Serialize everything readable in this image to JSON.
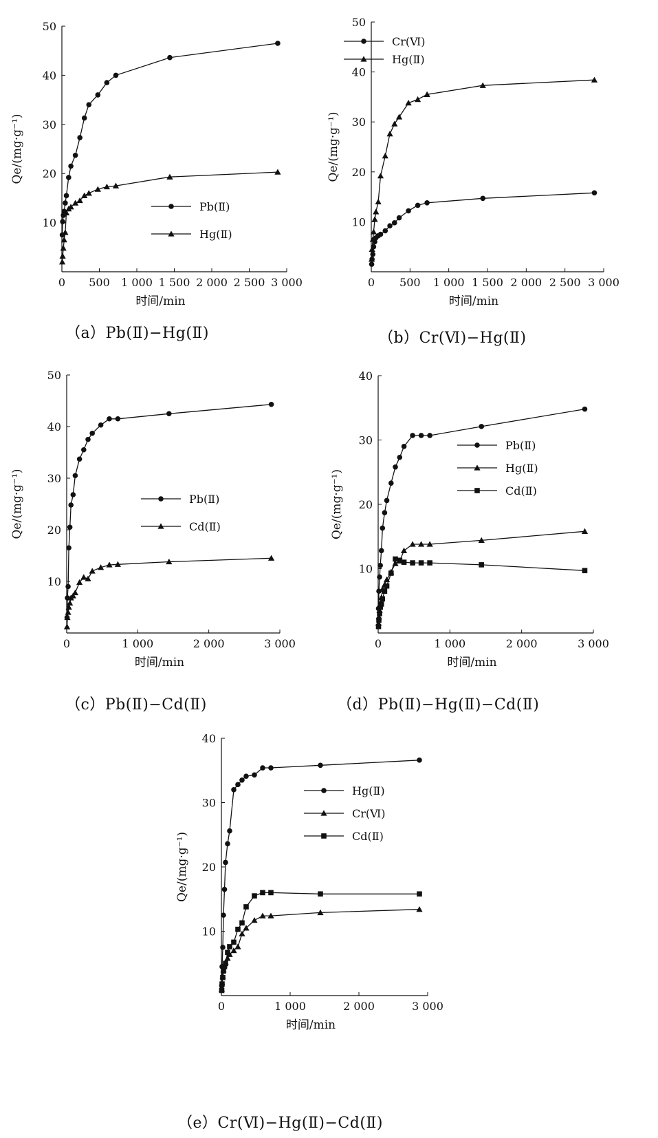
{
  "chart_data": [
    {
      "type": "line",
      "caption": "（a）Pb(Ⅱ)−Hg(Ⅱ)",
      "xlabel": "时间/min",
      "ylabel": "Qe/(mg·g⁻¹)",
      "xlim": [
        0,
        3000
      ],
      "ylim": [
        0,
        50
      ],
      "xticks": [
        0,
        500,
        1000,
        1500,
        2000,
        2500,
        3000
      ],
      "xtick_labels": [
        "0",
        "500",
        "1 000",
        "1 500",
        "2 000",
        "2 500",
        "3 000"
      ],
      "yticks": [
        10,
        20,
        30,
        40,
        50
      ],
      "ytick_labels": [
        "10",
        "20",
        "30",
        "40",
        "50"
      ],
      "legend_position": "right-middle",
      "grid": false,
      "series": [
        {
          "name": "Pb(Ⅱ)",
          "marker": "circle",
          "x": [
            5,
            10,
            20,
            30,
            45,
            60,
            90,
            120,
            180,
            240,
            300,
            360,
            480,
            600,
            720,
            1440,
            2880
          ],
          "y": [
            7.5,
            10.2,
            11.5,
            12.3,
            14.0,
            15.5,
            19.2,
            21.5,
            23.7,
            27.3,
            31.3,
            34.0,
            36.0,
            38.5,
            40.0,
            43.6,
            46.5
          ]
        },
        {
          "name": "Hg(Ⅱ)",
          "marker": "triangle",
          "x": [
            5,
            10,
            20,
            30,
            45,
            60,
            90,
            120,
            180,
            240,
            300,
            360,
            480,
            600,
            720,
            1440,
            2880
          ],
          "y": [
            2.0,
            3.2,
            4.8,
            6.5,
            8.0,
            12.0,
            12.8,
            13.2,
            14.0,
            14.5,
            15.5,
            16.0,
            16.8,
            17.3,
            17.5,
            19.3,
            20.3
          ]
        }
      ]
    },
    {
      "type": "line",
      "caption": "（b）Cr(Ⅵ)−Hg(Ⅱ)",
      "xlabel": "时间/min",
      "ylabel": "Qe/(mg·g⁻¹)",
      "xlim": [
        0,
        3000
      ],
      "ylim": [
        0,
        50
      ],
      "xticks": [
        0,
        500,
        1000,
        1500,
        2000,
        2500,
        3000
      ],
      "xtick_labels": [
        "0",
        "500",
        "1 000",
        "1 500",
        "2 000",
        "2 500",
        "3 000"
      ],
      "yticks": [
        10,
        20,
        30,
        40,
        50
      ],
      "ytick_labels": [
        "10",
        "20",
        "30",
        "40",
        "50"
      ],
      "legend_position": "top-left",
      "grid": false,
      "series": [
        {
          "name": "Cr(Ⅵ)",
          "marker": "circle",
          "x": [
            5,
            10,
            20,
            30,
            45,
            60,
            90,
            120,
            180,
            240,
            300,
            360,
            480,
            600,
            720,
            1440,
            2880
          ],
          "y": [
            1.5,
            2.5,
            3.5,
            5.0,
            6.0,
            6.8,
            7.2,
            7.5,
            8.2,
            9.2,
            9.8,
            10.8,
            12.2,
            13.3,
            13.8,
            14.7,
            15.8
          ]
        },
        {
          "name": "Hg(Ⅱ)",
          "marker": "triangle",
          "x": [
            5,
            10,
            20,
            30,
            45,
            60,
            90,
            120,
            180,
            240,
            300,
            360,
            480,
            600,
            720,
            1440,
            2880
          ],
          "y": [
            2.5,
            4.5,
            6.5,
            8.0,
            10.5,
            12.0,
            14.0,
            19.2,
            23.2,
            27.6,
            29.6,
            31.0,
            33.8,
            34.5,
            35.5,
            37.3,
            38.4
          ]
        }
      ]
    },
    {
      "type": "line",
      "caption": "（c）Pb(Ⅱ)−Cd(Ⅱ)",
      "xlabel": "时间/min",
      "ylabel": "Qe/(mg·g⁻¹)",
      "xlim": [
        0,
        3000
      ],
      "ylim": [
        0,
        50
      ],
      "xticks": [
        0,
        1000,
        2000,
        3000
      ],
      "xtick_labels": [
        "0",
        "1 000",
        "2 000",
        "3 000"
      ],
      "yticks": [
        10,
        20,
        30,
        40,
        50
      ],
      "ytick_labels": [
        "10",
        "20",
        "30",
        "40",
        "50"
      ],
      "legend_position": "right-middle",
      "grid": false,
      "series": [
        {
          "name": "Pb(Ⅱ)",
          "marker": "circle",
          "x": [
            5,
            10,
            20,
            30,
            45,
            60,
            90,
            120,
            180,
            240,
            300,
            360,
            480,
            600,
            720,
            1440,
            2880
          ],
          "y": [
            3.0,
            6.8,
            9.0,
            16.5,
            20.5,
            24.8,
            26.8,
            30.5,
            33.7,
            35.5,
            37.5,
            38.7,
            40.3,
            41.5,
            41.5,
            42.5,
            44.3
          ]
        },
        {
          "name": "Cd(Ⅱ)",
          "marker": "triangle",
          "x": [
            5,
            10,
            20,
            30,
            45,
            60,
            90,
            120,
            180,
            240,
            300,
            360,
            480,
            600,
            720,
            1440,
            2880
          ],
          "y": [
            1.2,
            3.0,
            4.0,
            5.0,
            5.8,
            6.8,
            7.2,
            7.8,
            9.8,
            10.8,
            10.5,
            12.0,
            12.7,
            13.2,
            13.3,
            13.8,
            14.5
          ]
        }
      ]
    },
    {
      "type": "line",
      "caption": "（d）Pb(Ⅱ)−Hg(Ⅱ)−Cd(Ⅱ)",
      "xlabel": "时间/min",
      "ylabel": "Qe/(mg·g⁻¹)",
      "xlim": [
        0,
        3000
      ],
      "ylim": [
        0,
        40
      ],
      "xticks": [
        0,
        1000,
        2000,
        3000
      ],
      "xtick_labels": [
        "0",
        "1 000",
        "2 000",
        "3 000"
      ],
      "yticks": [
        10,
        20,
        30,
        40
      ],
      "ytick_labels": [
        "10",
        "20",
        "30",
        "40"
      ],
      "legend_position": "right-middle",
      "grid": false,
      "series": [
        {
          "name": "Pb(Ⅱ)",
          "marker": "circle",
          "x": [
            5,
            10,
            20,
            30,
            45,
            60,
            90,
            120,
            180,
            240,
            300,
            360,
            480,
            600,
            720,
            1440,
            2880
          ],
          "y": [
            3.8,
            6.5,
            8.7,
            10.5,
            12.8,
            16.3,
            18.7,
            20.6,
            23.3,
            25.8,
            27.3,
            29.0,
            30.7,
            30.7,
            30.7,
            32.1,
            34.8
          ]
        },
        {
          "name": "Hg(Ⅱ)",
          "marker": "triangle",
          "x": [
            5,
            10,
            20,
            30,
            45,
            60,
            90,
            120,
            180,
            240,
            300,
            360,
            480,
            600,
            720,
            1440,
            2880
          ],
          "y": [
            1.5,
            2.5,
            3.5,
            4.5,
            5.5,
            6.8,
            7.5,
            8.3,
            9.5,
            10.8,
            11.2,
            12.8,
            13.8,
            13.8,
            13.8,
            14.4,
            15.8
          ]
        },
        {
          "name": "Cd(Ⅱ)",
          "marker": "square",
          "x": [
            5,
            10,
            20,
            30,
            45,
            60,
            90,
            120,
            180,
            240,
            300,
            360,
            480,
            600,
            720,
            1440,
            2880
          ],
          "y": [
            1.0,
            2.0,
            3.0,
            4.0,
            4.5,
            5.3,
            6.5,
            7.3,
            9.3,
            11.5,
            11.3,
            11.0,
            10.9,
            10.9,
            10.9,
            10.6,
            9.7
          ]
        }
      ]
    },
    {
      "type": "line",
      "caption": "（e）Cr(Ⅵ)−Hg(Ⅱ)−Cd(Ⅱ)",
      "xlabel": "时间/min",
      "ylabel": "Qe/(mg·g⁻¹)",
      "xlim": [
        0,
        3000
      ],
      "ylim": [
        0,
        40
      ],
      "xticks": [
        0,
        1000,
        2000,
        3000
      ],
      "xtick_labels": [
        "0",
        "1 000",
        "2 000",
        "3 000"
      ],
      "yticks": [
        10,
        20,
        30,
        40
      ],
      "ytick_labels": [
        "10",
        "20",
        "30",
        "40"
      ],
      "legend_position": "right-middle",
      "grid": false,
      "series": [
        {
          "name": "Hg(Ⅱ)",
          "marker": "circle",
          "x": [
            5,
            10,
            20,
            30,
            45,
            60,
            90,
            120,
            180,
            240,
            300,
            360,
            480,
            600,
            720,
            1440,
            2880
          ],
          "y": [
            1.5,
            4.5,
            7.5,
            12.5,
            16.5,
            20.7,
            23.6,
            25.6,
            32.0,
            32.8,
            33.5,
            34.1,
            34.3,
            35.4,
            35.4,
            35.8,
            36.6
          ]
        },
        {
          "name": "Cr(Ⅵ)",
          "marker": "triangle",
          "x": [
            5,
            10,
            20,
            30,
            45,
            60,
            90,
            120,
            180,
            240,
            300,
            360,
            480,
            600,
            720,
            1440,
            2880
          ],
          "y": [
            1.0,
            2.0,
            3.0,
            4.0,
            4.8,
            5.2,
            5.8,
            6.4,
            7.0,
            7.6,
            9.6,
            10.5,
            11.7,
            12.4,
            12.4,
            12.9,
            13.4
          ]
        },
        {
          "name": "Cd(Ⅱ)",
          "marker": "square",
          "x": [
            5,
            10,
            20,
            30,
            45,
            60,
            90,
            120,
            180,
            240,
            300,
            360,
            480,
            600,
            720,
            1440,
            2880
          ],
          "y": [
            0.8,
            1.8,
            2.8,
            3.8,
            4.5,
            5.0,
            6.7,
            7.6,
            8.3,
            10.3,
            11.3,
            13.8,
            15.5,
            16.0,
            16.0,
            15.8,
            15.8
          ]
        }
      ]
    }
  ]
}
